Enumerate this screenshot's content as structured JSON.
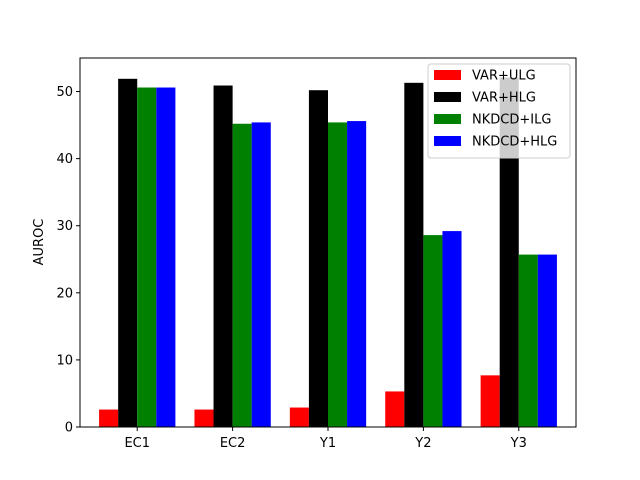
{
  "chart_data": {
    "type": "bar",
    "title": "",
    "xlabel": "",
    "ylabel": "AUROC",
    "categories": [
      "EC1",
      "EC2",
      "Y1",
      "Y2",
      "Y3"
    ],
    "ylim": [
      0,
      55
    ],
    "yticks": [
      0,
      10,
      20,
      30,
      40,
      50
    ],
    "grid": false,
    "legend_position": "top-right",
    "series": [
      {
        "name": "VAR+ULG",
        "color": "#ff0000",
        "values": [
          2.6,
          2.6,
          2.9,
          5.3,
          7.7
        ]
      },
      {
        "name": "VAR+HLG",
        "color": "#000000",
        "values": [
          51.9,
          50.9,
          50.2,
          51.3,
          52.1
        ]
      },
      {
        "name": "NKDCD+ILG",
        "color": "#008000",
        "values": [
          50.6,
          45.2,
          45.4,
          28.6,
          25.7
        ]
      },
      {
        "name": "NKDCD+HLG",
        "color": "#0000ff",
        "values": [
          50.6,
          45.4,
          45.6,
          29.2,
          25.7
        ]
      }
    ]
  }
}
